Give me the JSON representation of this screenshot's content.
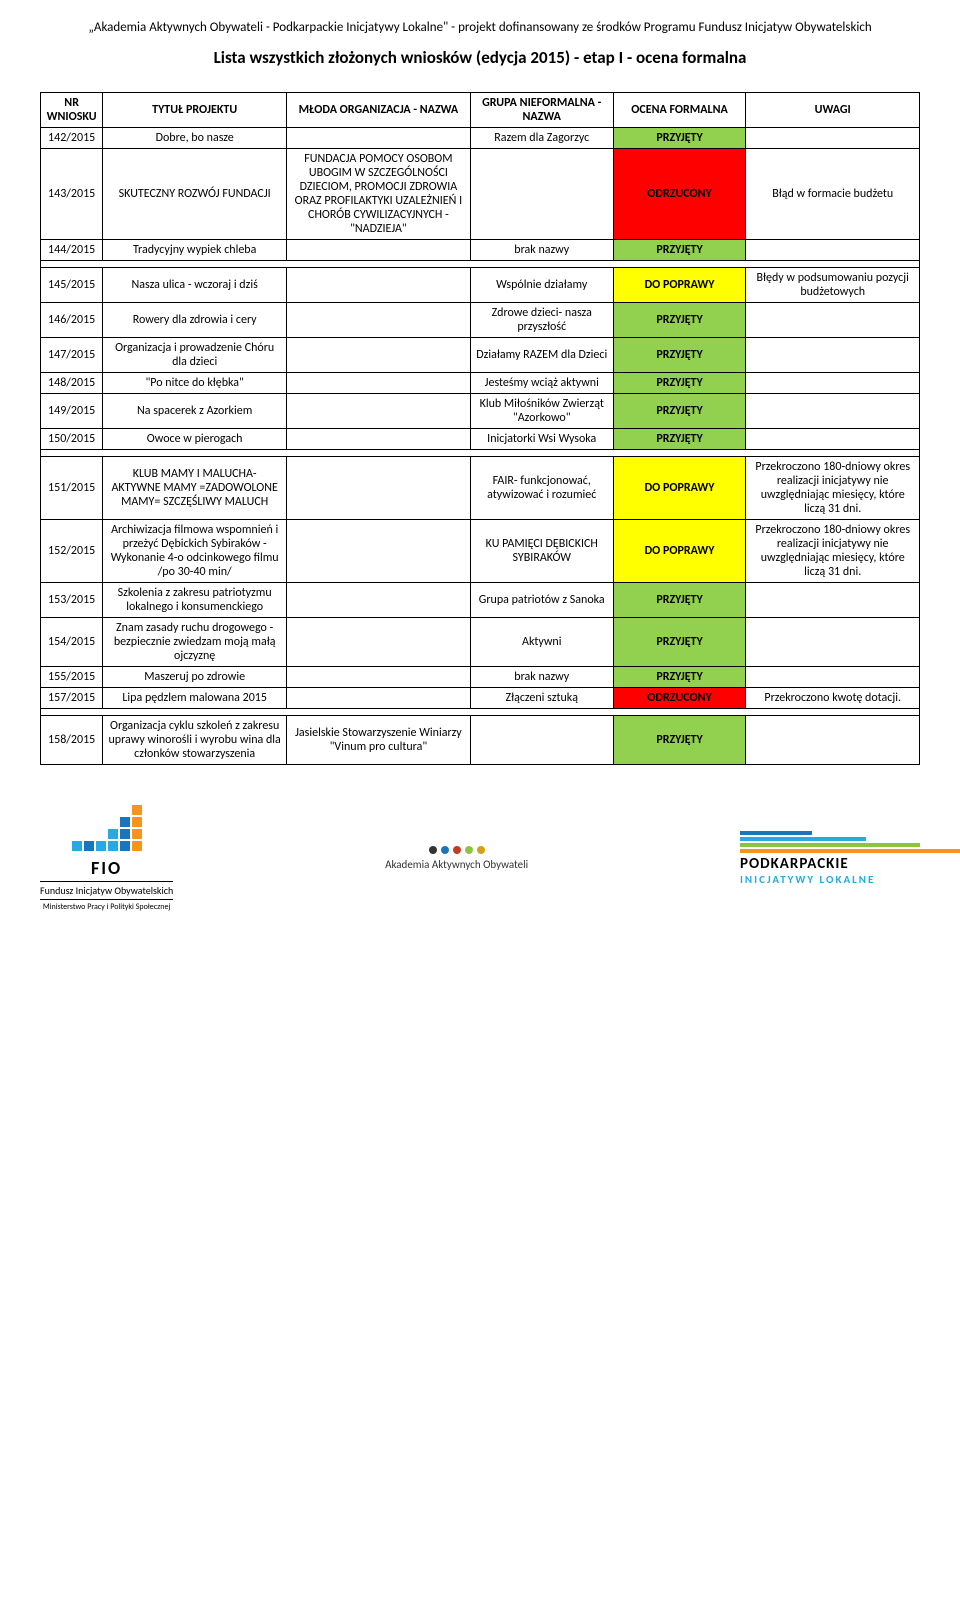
{
  "header": "„Akademia Aktywnych Obywateli - Podkarpackie Inicjatywy Lokalne\" - projekt dofinansowany ze środków Programu Fundusz Inicjatyw Obywatelskich",
  "title": "Lista wszystkich złożonych wniosków (edycja 2015) - etap I - ocena formalna",
  "columns": {
    "nr": "NR WNIOSKU",
    "project": "TYTUŁ PROJEKTU",
    "org": "MŁODA ORGANIZACJA - NAZWA",
    "group": "GRUPA NIEFORMALNA - NAZWA",
    "status": "OCENA FORMALNA",
    "notes": "UWAGI"
  },
  "colors": {
    "accepted": "#92d050",
    "rejected": "#ff0000",
    "fix": "#ffff00",
    "white": "#ffffff",
    "black": "#000000"
  },
  "statusLabels": {
    "accepted": "PRZYJĘTY",
    "rejected": "ODRZUCONY",
    "fix": "DO POPRAWY"
  },
  "rows": [
    {
      "nr": "142/2015",
      "project": "Dobre, bo nasze",
      "org": "",
      "group": "Razem dla Zagorzyc",
      "status": "accepted",
      "notes": ""
    },
    {
      "nr": "143/2015",
      "project": "SKUTECZNY ROZWÓJ FUNDACJI",
      "org": "FUNDACJA POMOCY OSOBOM UBOGIM W SZCZEGÓLNOŚCI DZIECIOM, PROMOCJI ZDROWIA ORAZ PROFILAKTYKI UZALEŻNIEŃ I CHORÓB CYWILIZACYJNYCH - \"NADZIEJA\"",
      "group": "",
      "status": "rejected",
      "notes": "Błąd w formacie budżetu"
    },
    {
      "nr": "144/2015",
      "project": "Tradycyjny wypiek chleba",
      "org": "",
      "group": "brak nazwy",
      "status": "accepted",
      "notes": ""
    }
  ],
  "rows2": [
    {
      "nr": "145/2015",
      "project": "Nasza ulica - wczoraj i dziś",
      "org": "",
      "group": "Wspólnie działamy",
      "status": "fix",
      "notes": "Błędy w podsumowaniu pozycji budżetowych"
    },
    {
      "nr": "146/2015",
      "project": "Rowery dla zdrowia i cery",
      "org": "",
      "group": "Zdrowe dzieci- nasza przyszłość",
      "status": "accepted",
      "notes": ""
    },
    {
      "nr": "147/2015",
      "project": "Organizacja i prowadzenie Chóru dla dzieci",
      "org": "",
      "group": "Działamy RAZEM dla Dzieci",
      "status": "accepted",
      "notes": ""
    },
    {
      "nr": "148/2015",
      "project": "\"Po nitce do kłębka\"",
      "org": "",
      "group": "Jesteśmy wciąż aktywni",
      "status": "accepted",
      "notes": ""
    },
    {
      "nr": "149/2015",
      "project": "Na spacerek z Azorkiem",
      "org": "",
      "group": "Klub Miłośników Zwierząt \"Azorkowo\"",
      "status": "accepted",
      "notes": ""
    },
    {
      "nr": "150/2015",
      "project": "Owoce w pierogach",
      "org": "",
      "group": "Inicjatorki Wsi Wysoka",
      "status": "accepted",
      "notes": ""
    }
  ],
  "rows3": [
    {
      "nr": "151/2015",
      "project": "KLUB MAMY I MALUCHA- AKTYWNE MAMY =ZADOWOLONE MAMY= SZCZĘŚLIWY MALUCH",
      "org": "",
      "group": "FAIR- funkcjonować, atywizować i rozumieć",
      "status": "fix",
      "notes": "Przekroczono 180-dniowy okres realizacji inicjatywy nie uwzględniając miesięcy, które liczą 31 dni."
    },
    {
      "nr": "152/2015",
      "project": "Archiwizacja filmowa wspomnień i przeżyć Dębickich Sybiraków - Wykonanie 4-o odcinkowego filmu /po 30-40 min/",
      "org": "",
      "group": "KU PAMIĘCI DĘBICKICH SYBIRAKÓW",
      "status": "fix",
      "notes": "Przekroczono 180-dniowy okres realizacji inicjatywy nie uwzględniając miesięcy, które liczą 31 dni."
    },
    {
      "nr": "153/2015",
      "project": "Szkolenia z zakresu patriotyzmu lokalnego i konsumenckiego",
      "org": "",
      "group": "Grupa patriotów z Sanoka",
      "status": "accepted",
      "notes": ""
    },
    {
      "nr": "154/2015",
      "project": "Znam zasady ruchu drogowego - bezpiecznie zwiedzam moją małą ojczyznę",
      "org": "",
      "group": "Aktywni",
      "status": "accepted",
      "notes": ""
    },
    {
      "nr": "155/2015",
      "project": "Maszeruj po zdrowie",
      "org": "",
      "group": "brak nazwy",
      "status": "accepted",
      "notes": ""
    },
    {
      "nr": "157/2015",
      "project": "Lipa pędzlem malowana 2015",
      "org": "",
      "group": "Złączeni sztuką",
      "status": "rejected",
      "notes": "Przekroczono kwotę dotacji."
    }
  ],
  "rows4": [
    {
      "nr": "158/2015",
      "project": "Organizacja cyklu szkoleń z zakresu uprawy winorośli i wyrobu wina dla członków stowarzyszenia",
      "org": "Jasielskie Stowarzyszenie Winiarzy \"Vinum pro cultura\"",
      "group": "",
      "status": "accepted",
      "notes": ""
    }
  ],
  "footer": {
    "logo1": {
      "title": "FIO",
      "sub": "Fundusz Inicjatyw Obywatelskich",
      "sub2": "Ministerstwo Pracy i Polityki Społecznej"
    },
    "logo2": {
      "text": "Akademia Aktywnych Obywateli"
    },
    "logo3": {
      "line1": "PODKARPACKIE",
      "line2": "INICJATYWY LOKALNE"
    },
    "logoColors": {
      "orange": "#f7941e",
      "blue1": "#1b75bc",
      "blue2": "#27aae1",
      "green": "#8bc53f",
      "grey": "#333333",
      "red": "#c23b22",
      "yellow": "#d4a017"
    }
  }
}
